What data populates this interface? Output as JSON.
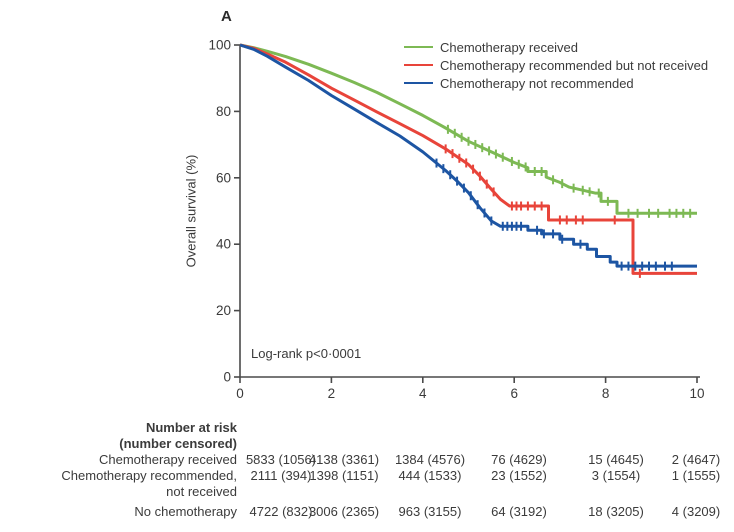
{
  "figure": {
    "panel_label": "A",
    "background": "#ffffff"
  },
  "chart_data": {
    "type": "line",
    "subtype": "kaplan-meier-step",
    "title": "",
    "xlabel": "",
    "ylabel": "Overall survival (%)",
    "xlim": [
      0,
      10
    ],
    "ylim": [
      0,
      100
    ],
    "xticks": [
      0,
      2,
      4,
      6,
      8,
      10
    ],
    "yticks": [
      0,
      20,
      40,
      60,
      80,
      100
    ],
    "grid": false,
    "legend_position": "top-right-inside",
    "annotation": "Log-rank p<0·0001",
    "axis_color": "#4a4a4a",
    "text_color": "#3a3a3a",
    "series": [
      {
        "name": "Chemotherapy received",
        "color": "#7db954",
        "points": [
          [
            0,
            100
          ],
          [
            0.3,
            99.2
          ],
          [
            0.6,
            98.1
          ],
          [
            1,
            96.5
          ],
          [
            1.5,
            94.2
          ],
          [
            2,
            91.5
          ],
          [
            2.5,
            88.7
          ],
          [
            3,
            85.7
          ],
          [
            3.5,
            82.3
          ],
          [
            4,
            78.8
          ],
          [
            4.5,
            75
          ],
          [
            5,
            71
          ],
          [
            5.5,
            67.8
          ],
          [
            6,
            64.6
          ],
          [
            6.3,
            63
          ],
          [
            6.3,
            61.9
          ],
          [
            6.7,
            61.9
          ],
          [
            6.7,
            60.2
          ],
          [
            7,
            58.6
          ],
          [
            7.2,
            57.2
          ],
          [
            7.77,
            55.4
          ],
          [
            7.9,
            55.4
          ],
          [
            7.9,
            52.9
          ],
          [
            8.25,
            52.9
          ],
          [
            8.25,
            49.3
          ],
          [
            10,
            49.3
          ]
        ],
        "censor_x": [
          4.55,
          4.7,
          4.85,
          5.0,
          5.15,
          5.3,
          5.45,
          5.6,
          5.75,
          5.95,
          6.1,
          6.25,
          6.45,
          6.6,
          6.85,
          7.05,
          7.3,
          7.5,
          7.65,
          7.85,
          8.05,
          8.5,
          8.7,
          8.95,
          9.15,
          9.4,
          9.55,
          9.7,
          9.85
        ]
      },
      {
        "name": "Chemotherapy recommended but not received",
        "color": "#e8443a",
        "points": [
          [
            0,
            100
          ],
          [
            0.3,
            99
          ],
          [
            0.6,
            97.3
          ],
          [
            1,
            94.8
          ],
          [
            1.5,
            91
          ],
          [
            2,
            87
          ],
          [
            2.5,
            83.4
          ],
          [
            3,
            79.8
          ],
          [
            3.5,
            76.3
          ],
          [
            4,
            72.7
          ],
          [
            4.5,
            68.7
          ],
          [
            5,
            64
          ],
          [
            5.25,
            60.5
          ],
          [
            5.5,
            56.5
          ],
          [
            5.7,
            53.5
          ],
          [
            5.9,
            51.5
          ],
          [
            6.75,
            51.5
          ],
          [
            6.75,
            47.3
          ],
          [
            8.6,
            47.3
          ],
          [
            8.6,
            31.2
          ],
          [
            10,
            31.2
          ]
        ],
        "censor_x": [
          4.5,
          4.65,
          4.8,
          4.95,
          5.1,
          5.25,
          5.4,
          5.55,
          5.95,
          6.05,
          6.15,
          6.3,
          6.45,
          6.6,
          7.0,
          7.15,
          7.35,
          7.5,
          8.2,
          8.75
        ]
      },
      {
        "name": "Chemotherapy not recommended",
        "color": "#1d55a3",
        "points": [
          [
            0,
            100
          ],
          [
            0.3,
            98.7
          ],
          [
            0.6,
            96.6
          ],
          [
            1,
            93.3
          ],
          [
            1.5,
            89.3
          ],
          [
            2,
            84.8
          ],
          [
            2.5,
            80.7
          ],
          [
            3,
            76.6
          ],
          [
            3.5,
            72.6
          ],
          [
            4,
            67.8
          ],
          [
            4.5,
            62.2
          ],
          [
            4.75,
            59
          ],
          [
            5,
            55.5
          ],
          [
            5.25,
            51
          ],
          [
            5.5,
            47
          ],
          [
            5.7,
            45.4
          ],
          [
            6.3,
            45.4
          ],
          [
            6.3,
            44.2
          ],
          [
            6.6,
            44.2
          ],
          [
            6.6,
            43.1
          ],
          [
            7,
            43.1
          ],
          [
            7,
            41.5
          ],
          [
            7.3,
            41.5
          ],
          [
            7.3,
            40
          ],
          [
            7.6,
            40
          ],
          [
            7.6,
            38.5
          ],
          [
            7.8,
            38.5
          ],
          [
            7.8,
            36.3
          ],
          [
            8.1,
            36.3
          ],
          [
            8.1,
            34.6
          ],
          [
            8.25,
            34.6
          ],
          [
            8.25,
            33.4
          ],
          [
            10,
            33.4
          ]
        ],
        "censor_x": [
          4.3,
          4.45,
          4.6,
          4.75,
          4.9,
          5.05,
          5.2,
          5.35,
          5.5,
          5.75,
          5.85,
          5.95,
          6.05,
          6.15,
          6.5,
          6.65,
          6.85,
          7.05,
          7.45,
          8.35,
          8.5,
          8.65,
          8.8,
          8.95,
          9.1,
          9.3,
          9.45
        ]
      }
    ]
  },
  "risk_table": {
    "header": [
      "Number at risk",
      "(number censored)"
    ],
    "rows": [
      {
        "label_lines": [
          "Chemotherapy received"
        ],
        "values": [
          "5833 (1056)",
          "4138 (3361)",
          "1384 (4576)",
          "76 (4629)",
          "15 (4645)",
          "2 (4647)"
        ]
      },
      {
        "label_lines": [
          "Chemotherapy recommended,",
          "not received"
        ],
        "values": [
          "2111 (394)",
          "1398 (1151)",
          "444 (1533)",
          "23 (1552)",
          "3 (1554)",
          "1 (1555)"
        ]
      },
      {
        "label_lines": [
          "No chemotherapy"
        ],
        "values": [
          "4722 (832)",
          "3006 (2365)",
          "963 (3155)",
          "64 (3192)",
          "18 (3205)",
          "4 (3209)"
        ]
      }
    ]
  }
}
